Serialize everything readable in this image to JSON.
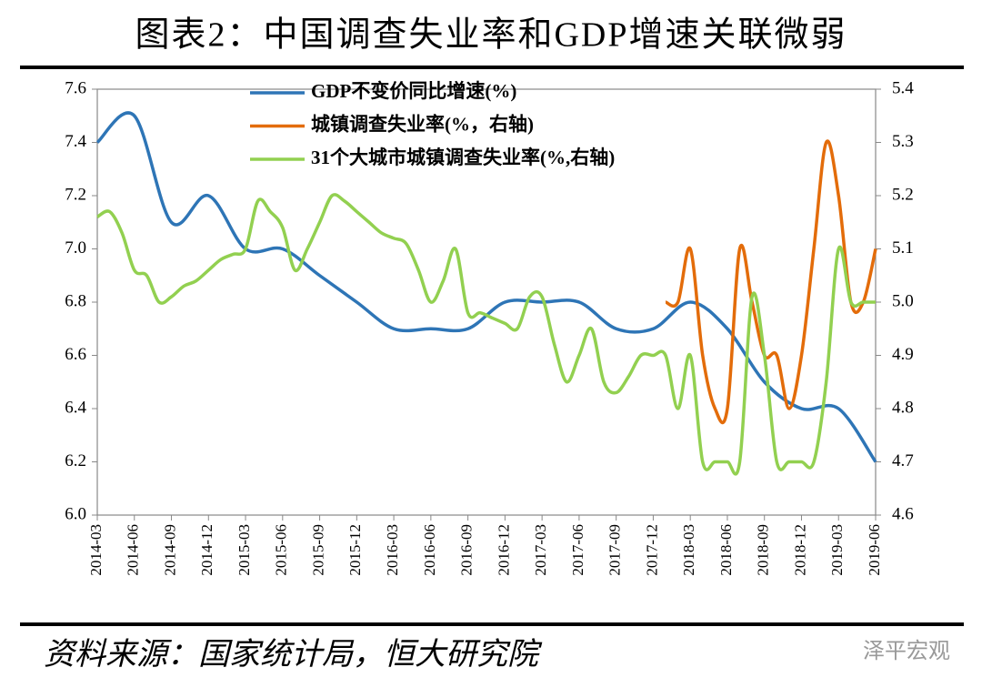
{
  "chart_data": {
    "type": "line",
    "title": "图表2：中国调查失业率和GDP增速关联微弱",
    "source": "资料来源：国家统计局，恒大研究院",
    "watermark": "泽平宏观",
    "legend": "top-left",
    "categories": [
      "2014-03",
      null,
      null,
      "2014-06",
      null,
      null,
      "2014-09",
      null,
      null,
      "2014-12",
      null,
      null,
      "2015-03",
      null,
      null,
      "2015-06",
      null,
      null,
      "2015-09",
      null,
      null,
      "2015-12",
      null,
      null,
      "2016-03",
      null,
      null,
      "2016-06",
      null,
      null,
      "2016-09",
      null,
      null,
      "2016-12",
      null,
      null,
      "2017-03",
      null,
      null,
      "2017-06",
      null,
      null,
      "2017-09",
      null,
      null,
      "2017-12",
      null,
      null,
      "2018-03",
      null,
      null,
      "2018-06",
      null,
      null,
      "2018-09",
      null,
      null,
      "2018-12",
      null,
      null,
      "2019-03",
      null,
      null,
      "2019-06"
    ],
    "ylim": [
      6.0,
      7.6
    ],
    "yticks": [
      {
        "value": 6.0,
        "label": "6.0"
      },
      6.2,
      6.4,
      6.6,
      6.8,
      {
        "value": 7.0,
        "label": "7.0"
      },
      7.2,
      7.4,
      7.6
    ],
    "y2lim": [
      4.6,
      5.4
    ],
    "y2ticks": [
      4.6,
      4.7,
      4.8,
      4.9,
      {
        "value": 5.0,
        "label": "5.0"
      },
      5.1,
      5.2,
      5.3,
      5.4
    ],
    "series": [
      {
        "name": "GDP不变价同比增速(%)",
        "color": "#2e75b6",
        "x": [
          "2014-03",
          "2014-06",
          "2014-09",
          "2014-12",
          "2015-03",
          "2015-06",
          "2015-09",
          "2015-12",
          "2016-03",
          "2016-06",
          "2016-09",
          "2016-12",
          "2017-03",
          "2017-06",
          "2017-09",
          "2017-12",
          "2018-03",
          "2018-06",
          "2018-09",
          "2018-12",
          "2019-03",
          "2019-06"
        ],
        "values": [
          7.4,
          7.5,
          7.1,
          7.2,
          7.0,
          7.0,
          6.9,
          6.8,
          6.7,
          6.7,
          6.7,
          6.8,
          6.8,
          6.8,
          6.7,
          6.7,
          6.8,
          6.7,
          6.5,
          6.4,
          6.4,
          6.2
        ]
      },
      {
        "name": "城镇调查失业率(%，右轴)",
        "color": "#e36c0a",
        "axis": "y2",
        "values": [
          null,
          null,
          null,
          null,
          null,
          null,
          null,
          null,
          null,
          null,
          null,
          null,
          null,
          null,
          null,
          null,
          null,
          null,
          null,
          null,
          null,
          null,
          null,
          null,
          null,
          null,
          null,
          null,
          null,
          null,
          null,
          null,
          null,
          null,
          null,
          null,
          null,
          null,
          null,
          null,
          null,
          null,
          null,
          null,
          null,
          null,
          5.0,
          5.0,
          5.1,
          4.9,
          4.8,
          4.8,
          5.1,
          5.0,
          4.9,
          4.9,
          4.8,
          4.9,
          5.1,
          5.3,
          5.2,
          5.0,
          5.0,
          5.1
        ]
      },
      {
        "name": "31个大城市城镇调查失业率(%,右轴)",
        "color": "#92d050",
        "axis": "y2",
        "values": [
          5.16,
          5.17,
          5.13,
          5.06,
          5.05,
          5.0,
          5.01,
          5.03,
          5.04,
          5.06,
          5.08,
          5.09,
          5.1,
          5.19,
          5.17,
          5.14,
          5.06,
          5.1,
          5.15,
          5.2,
          5.19,
          5.17,
          5.15,
          5.13,
          5.12,
          5.11,
          5.06,
          5.0,
          5.04,
          5.1,
          4.98,
          4.98,
          4.97,
          4.96,
          4.95,
          5.01,
          5.01,
          4.92,
          4.85,
          4.9,
          4.95,
          4.85,
          4.83,
          4.86,
          4.9,
          4.9,
          4.9,
          4.8,
          4.9,
          4.7,
          4.7,
          4.7,
          4.7,
          5.01,
          4.9,
          4.7,
          4.7,
          4.7,
          4.7,
          4.85,
          5.1,
          5.0,
          5.0,
          5.0
        ]
      }
    ]
  }
}
